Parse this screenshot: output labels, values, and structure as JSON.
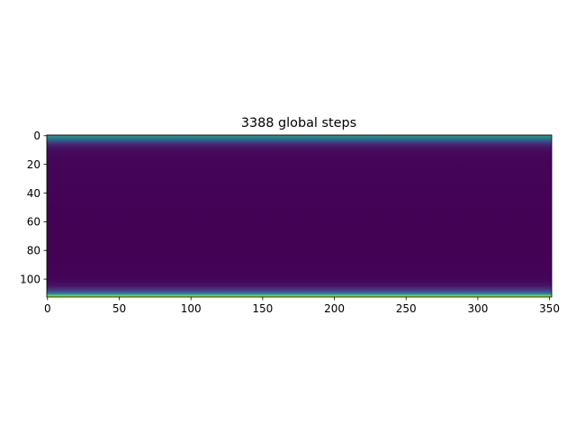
{
  "chart_data": {
    "type": "heatmap",
    "title": "3388 global steps",
    "xlabel": "",
    "ylabel": "",
    "x_ticks": [
      "0",
      "50",
      "100",
      "150",
      "200",
      "250",
      "300",
      "350"
    ],
    "x_tick_values": [
      0,
      50,
      100,
      150,
      200,
      250,
      300,
      350
    ],
    "y_ticks": [
      "0",
      "20",
      "40",
      "60",
      "80",
      "100"
    ],
    "y_tick_values": [
      0,
      20,
      40,
      60,
      80,
      100
    ],
    "xlim": [
      -0.5,
      351.5
    ],
    "ylim": [
      112.5,
      -0.5
    ],
    "colormap": "viridis",
    "y_origin": "top",
    "row_profile": {
      "rows": [
        0,
        1,
        2,
        3,
        4,
        5,
        6,
        8,
        10,
        14,
        20,
        30,
        40,
        60,
        80,
        95,
        100,
        104,
        106,
        108,
        109,
        110,
        111,
        112
      ],
      "intensity": [
        0.5,
        0.42,
        0.34,
        0.26,
        0.19,
        0.13,
        0.09,
        0.05,
        0.03,
        0.015,
        0.01,
        0.008,
        0.006,
        0.004,
        0.004,
        0.005,
        0.012,
        0.05,
        0.12,
        0.24,
        0.36,
        0.55,
        0.78,
        0.95
      ]
    },
    "grid": false,
    "legend": "none"
  }
}
